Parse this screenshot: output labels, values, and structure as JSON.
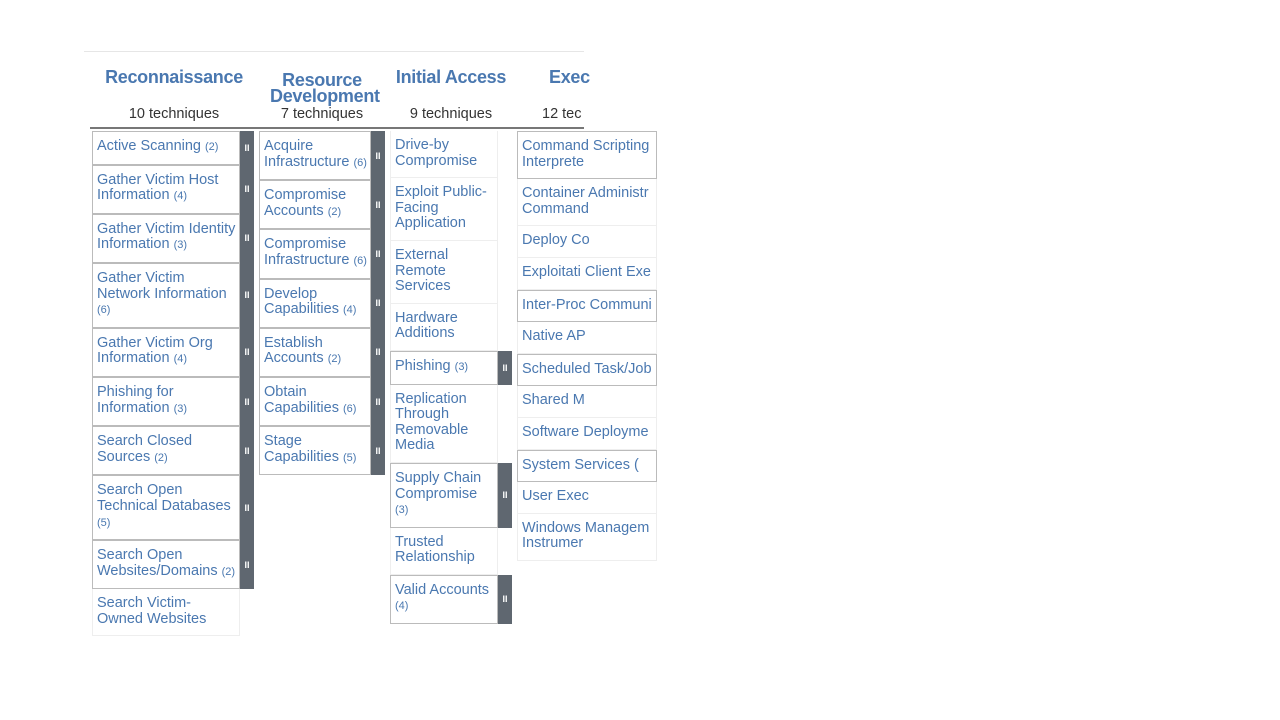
{
  "tactics": [
    {
      "name": "Reconnaissance",
      "count": "10 techniques",
      "techniques": [
        {
          "label": "Active Scanning",
          "sub": "(2)"
        },
        {
          "label": "Gather Victim Host Information",
          "sub": "(4)"
        },
        {
          "label": "Gather Victim Identity Information",
          "sub": "(3)"
        },
        {
          "label": "Gather Victim Network Information",
          "sub": "(6)"
        },
        {
          "label": "Gather Victim Org Information",
          "sub": "(4)"
        },
        {
          "label": "Phishing for Information",
          "sub": "(3)"
        },
        {
          "label": "Search Closed Sources",
          "sub": "(2)"
        },
        {
          "label": "Search Open Technical Databases",
          "sub": "(5)"
        },
        {
          "label": "Search Open Websites/Domains",
          "sub": "(2)"
        },
        {
          "label": "Search Victim-Owned Websites",
          "sub": ""
        }
      ]
    },
    {
      "name": "Resource Development",
      "count": "7 techniques",
      "techniques": [
        {
          "label": "Acquire Infrastructure",
          "sub": "(6)"
        },
        {
          "label": "Compromise Accounts",
          "sub": "(2)"
        },
        {
          "label": "Compromise Infrastructure",
          "sub": "(6)"
        },
        {
          "label": "Develop Capabilities",
          "sub": "(4)"
        },
        {
          "label": "Establish Accounts",
          "sub": "(2)"
        },
        {
          "label": "Obtain Capabilities",
          "sub": "(6)"
        },
        {
          "label": "Stage Capabilities",
          "sub": "(5)"
        }
      ]
    },
    {
      "name": "Initial Access",
      "count": "9 techniques",
      "techniques": [
        {
          "label": "Drive-by Compromise",
          "sub": ""
        },
        {
          "label": "Exploit Public-Facing Application",
          "sub": ""
        },
        {
          "label": "External Remote Services",
          "sub": ""
        },
        {
          "label": "Hardware Additions",
          "sub": ""
        },
        {
          "label": "Phishing",
          "sub": "(3)"
        },
        {
          "label": "Replication Through Removable Media",
          "sub": ""
        },
        {
          "label": "Supply Chain Compromise",
          "sub": "(3)"
        },
        {
          "label": "Trusted Relationship",
          "sub": ""
        },
        {
          "label": "Valid Accounts",
          "sub": "(4)"
        }
      ]
    },
    {
      "name": "Exec",
      "count": "12 tec",
      "techniques": [
        {
          "label": "Command Scripting Interprete",
          "sub": "",
          "boxed": true
        },
        {
          "label": "Container Administr Command",
          "sub": ""
        },
        {
          "label": "Deploy Co",
          "sub": ""
        },
        {
          "label": "Exploitati Client Exe",
          "sub": ""
        },
        {
          "label": "Inter-Proc Communi",
          "sub": "",
          "boxed": true
        },
        {
          "label": "Native AP",
          "sub": ""
        },
        {
          "label": "Scheduled Task/Job",
          "sub": "",
          "boxed": true
        },
        {
          "label": "Shared M",
          "sub": ""
        },
        {
          "label": "Software Deployme",
          "sub": ""
        },
        {
          "label": "System Services (",
          "sub": "",
          "boxed": true
        },
        {
          "label": "User Exec",
          "sub": ""
        },
        {
          "label": "Windows Managem Instrumer",
          "sub": ""
        }
      ]
    }
  ],
  "expand_glyph": "II"
}
